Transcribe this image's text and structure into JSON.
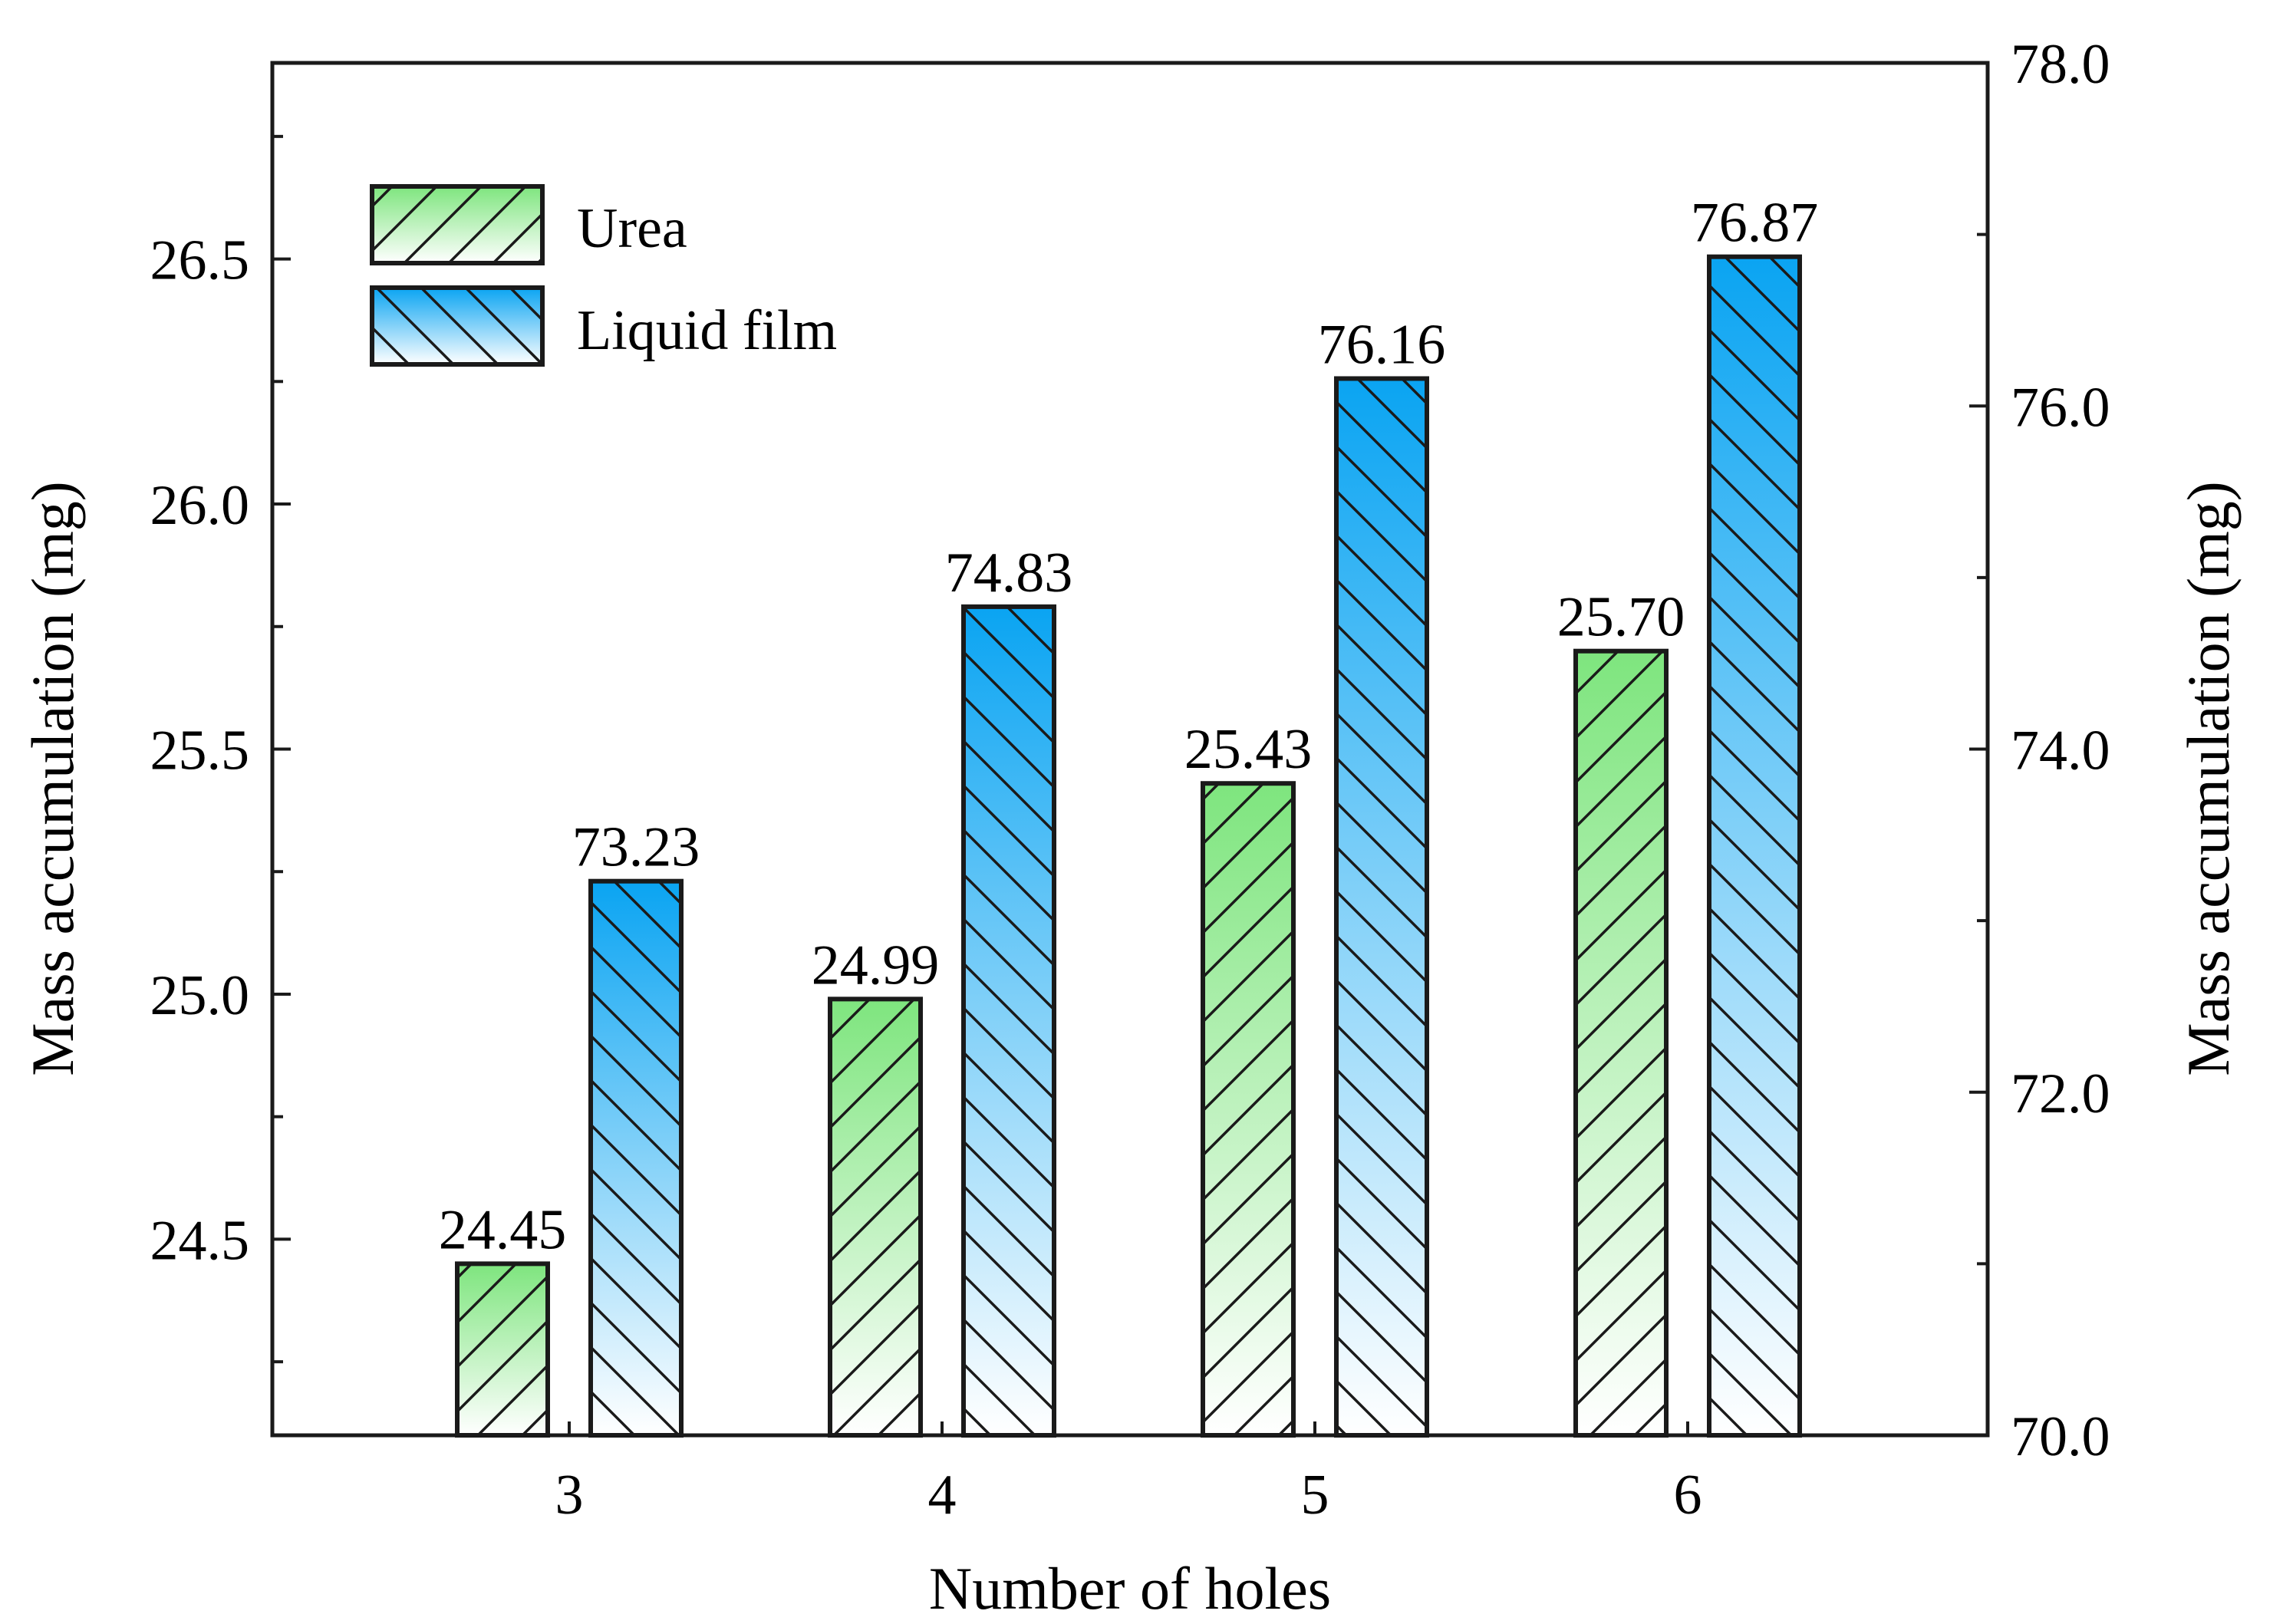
{
  "chart_data": {
    "type": "bar",
    "categories": [
      "3",
      "4",
      "5",
      "6"
    ],
    "xlabel": "Number of holes",
    "ylabel_left": "Mass accumulation (mg)",
    "ylabel_right": "Mass accumulation (mg)",
    "ylim_left": [
      24.1,
      26.9
    ],
    "ylim_right": [
      70.0,
      78.0
    ],
    "yticks_left": [
      "24.5",
      "25.0",
      "25.5",
      "26.0",
      "26.5"
    ],
    "yticks_right": [
      "70.0",
      "72.0",
      "74.0",
      "76.0",
      "78.0"
    ],
    "grid": false,
    "legend_position": "top-left",
    "series": [
      {
        "name": "Urea",
        "axis": "left",
        "values": [
          24.45,
          24.99,
          25.43,
          25.7
        ],
        "labels": [
          "24.45",
          "24.99",
          "25.43",
          "25.70"
        ],
        "color_top": "#7ee57e",
        "color_bottom": "#ffffff",
        "hatch": "forward-diagonal"
      },
      {
        "name": "Liquid film",
        "axis": "right",
        "values": [
          73.23,
          74.83,
          76.16,
          76.87
        ],
        "labels": [
          "73.23",
          "74.83",
          "76.16",
          "76.87"
        ],
        "color_top": "#0aa4f2",
        "color_bottom": "#ffffff",
        "hatch": "back-diagonal"
      }
    ]
  }
}
